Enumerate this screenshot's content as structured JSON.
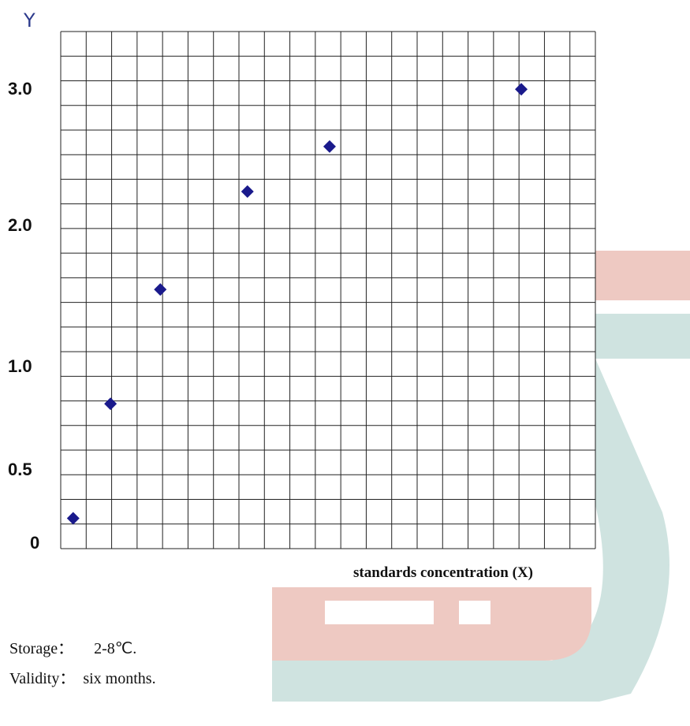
{
  "colors": {
    "grid": "#222222",
    "marker": "#1a1a8c",
    "y_letter": "#2c3a8c",
    "watermark_pink": "#eec9c2",
    "watermark_teal": "#cfe3e0"
  },
  "chart_data": {
    "type": "scatter",
    "title": "",
    "xlabel": "standards concentration (X)",
    "ylabel": "Y",
    "y_ticks": [
      "3.0",
      "2.0",
      "1.0",
      "0.5",
      "0"
    ],
    "grid": true,
    "legend": "none",
    "marker": "diamond",
    "series": [
      {
        "points": [
          {
            "x": 0.5,
            "y": 0.15
          },
          {
            "x": 2.0,
            "y": 0.83
          },
          {
            "x": 4.0,
            "y": 1.56
          },
          {
            "x": 7.5,
            "y": 2.26
          },
          {
            "x": 10.8,
            "y": 2.59
          },
          {
            "x": 18.5,
            "y": 3.01
          }
        ]
      }
    ]
  },
  "info": {
    "storage_label": "Storage：",
    "storage_value": "2-8℃.",
    "validity_label": "Validity：",
    "validity_value": "six months."
  }
}
